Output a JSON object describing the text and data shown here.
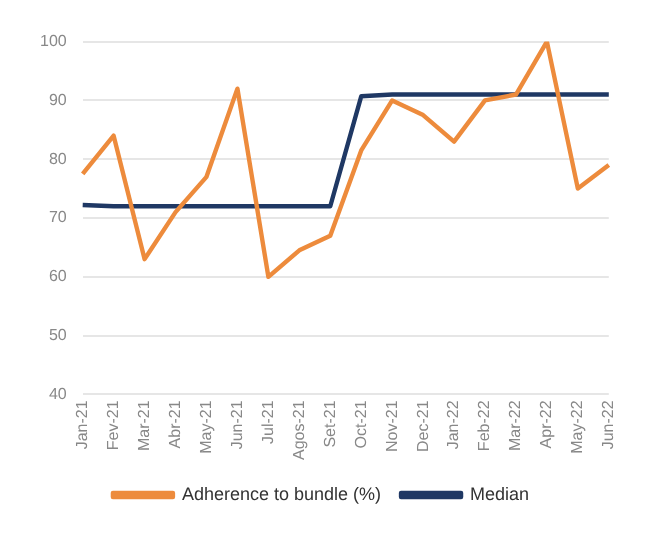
{
  "chart_data": {
    "type": "line",
    "categories": [
      "Jan-21",
      "Fev-21",
      "Mar-21",
      "Abr-21",
      "May-21",
      "Jun-21",
      "Jul-21",
      "Agos-21",
      "Set-21",
      "Oct-21",
      "Nov-21",
      "Dec-21",
      "Jan-22",
      "Feb-22",
      "Mar-22",
      "Apr-22",
      "May-22",
      "Jun-22"
    ],
    "series": [
      {
        "name": "Adherence to bundle (%)",
        "color": "#ed8b3c",
        "values": [
          77.5,
          84,
          63,
          71,
          77,
          92,
          60,
          64.5,
          67,
          81.5,
          90,
          87.5,
          83,
          90,
          91,
          100,
          75,
          79
        ]
      },
      {
        "name": "Median",
        "color": "#1f3864",
        "values": [
          72.2,
          72,
          72,
          72,
          72,
          72,
          72,
          72,
          72,
          90.7,
          91,
          91,
          91,
          91,
          91,
          91,
          91,
          91
        ]
      }
    ],
    "ylim": [
      40,
      100
    ],
    "yticks": [
      40,
      50,
      60,
      70,
      80,
      90,
      100
    ],
    "grid": "y",
    "legend": "bottom",
    "marker": "none",
    "line_style": "solid"
  }
}
